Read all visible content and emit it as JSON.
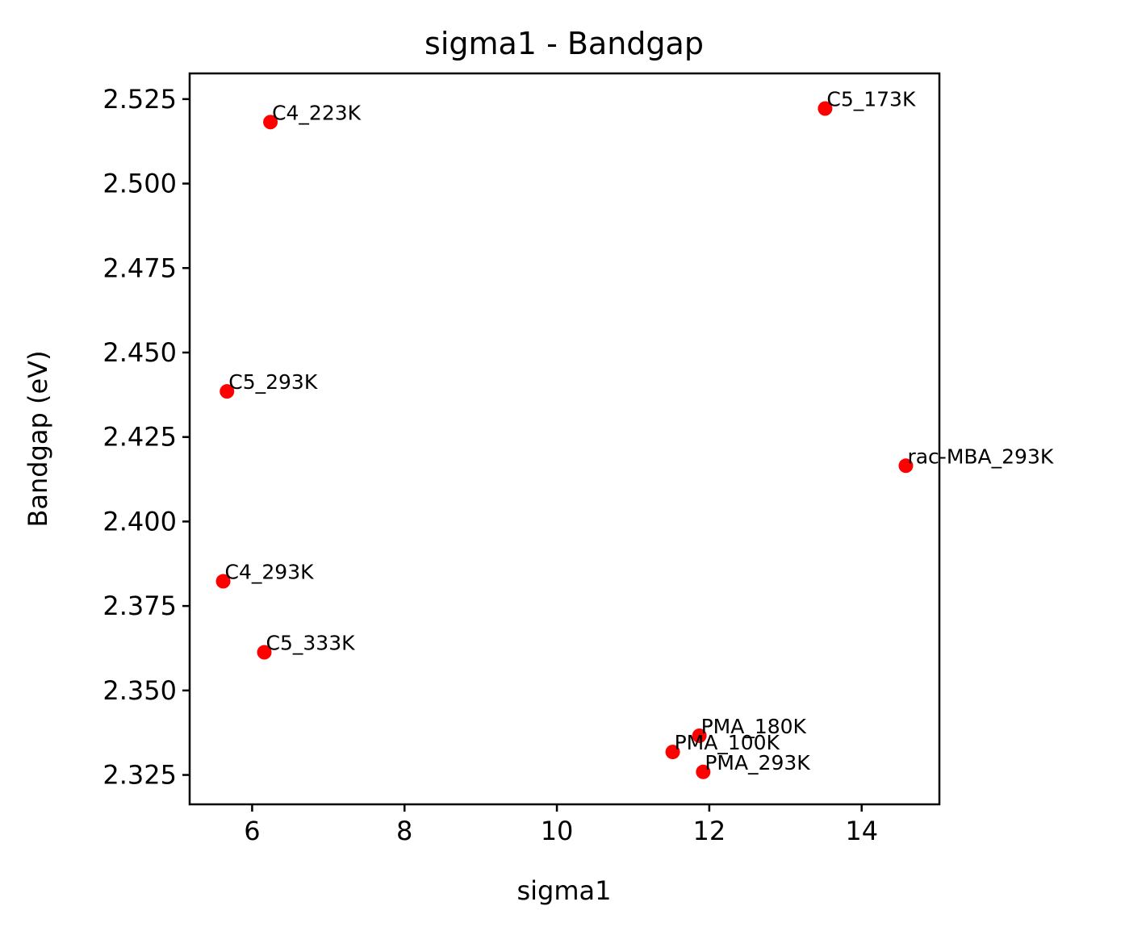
{
  "chart_data": {
    "type": "scatter",
    "title": "sigma1 - Bandgap",
    "xlabel": "sigma1",
    "ylabel": "Bandgap (eV)",
    "xlim": [
      5.18,
      15.02
    ],
    "ylim": [
      2.3163,
      2.5326
    ],
    "xticks": [
      6,
      8,
      10,
      12,
      14
    ],
    "xtick_labels": [
      "6",
      "8",
      "10",
      "12",
      "14"
    ],
    "yticks": [
      2.325,
      2.35,
      2.375,
      2.4,
      2.425,
      2.45,
      2.475,
      2.5,
      2.525
    ],
    "ytick_labels": [
      "2.325",
      "2.350",
      "2.375",
      "2.400",
      "2.425",
      "2.450",
      "2.475",
      "2.500",
      "2.525"
    ],
    "grid": false,
    "marker_color": "#ff0000",
    "points": [
      {
        "label": "C4_223K",
        "x": 6.24,
        "y": 2.5182
      },
      {
        "label": "C5_173K",
        "x": 13.52,
        "y": 2.5222
      },
      {
        "label": "C5_293K",
        "x": 5.67,
        "y": 2.4385
      },
      {
        "label": "rac-MBA_293K",
        "x": 14.58,
        "y": 2.4165
      },
      {
        "label": "C4_293K",
        "x": 5.62,
        "y": 2.3823
      },
      {
        "label": "C5_333K",
        "x": 6.16,
        "y": 2.3613
      },
      {
        "label": "PMA_180K",
        "x": 11.87,
        "y": 2.3366
      },
      {
        "label": "PMA_100K",
        "x": 11.52,
        "y": 2.3318
      },
      {
        "label": "PMA_293K",
        "x": 11.92,
        "y": 2.3259
      }
    ]
  }
}
